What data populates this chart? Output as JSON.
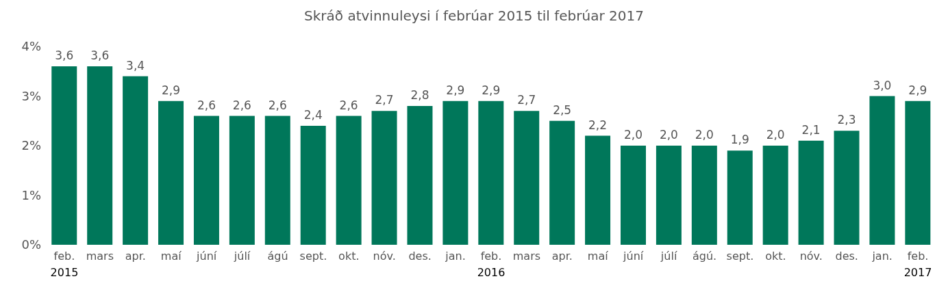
{
  "chart_data": {
    "type": "bar",
    "title": "Skráð atvinnuleysi í febrúar 2015 til febrúar 2017",
    "categories": [
      "feb. 2015",
      "mars",
      "apr.",
      "maí",
      "júní",
      "júlí",
      "ágú",
      "sept.",
      "okt.",
      "nóv.",
      "des.",
      "jan.",
      "feb. 2016",
      "mars",
      "apr.",
      "maí",
      "júní",
      "júlí",
      "ágú.",
      "sept.",
      "okt.",
      "nóv.",
      "des.",
      "jan.",
      "feb. 2017"
    ],
    "values": [
      3.6,
      3.6,
      3.4,
      2.9,
      2.6,
      2.6,
      2.6,
      2.4,
      2.6,
      2.7,
      2.8,
      2.9,
      2.9,
      2.7,
      2.5,
      2.2,
      2.0,
      2.0,
      2.0,
      1.9,
      2.0,
      2.1,
      2.3,
      3.0,
      2.9
    ],
    "value_labels": [
      "3,6",
      "3,6",
      "3,4",
      "2,9",
      "2,6",
      "2,6",
      "2,6",
      "2,4",
      "2,6",
      "2,7",
      "2,8",
      "2,9",
      "2,9",
      "2,7",
      "2,5",
      "2,2",
      "2,0",
      "2,0",
      "2,0",
      "1,9",
      "2,0",
      "2,1",
      "2,3",
      "3,0",
      "2,9"
    ],
    "color": "#00775a",
    "ylim": [
      0,
      4
    ],
    "yticks": [
      {
        "value": 0,
        "label": "0%"
      },
      {
        "value": 1,
        "label": "1%"
      },
      {
        "value": 2,
        "label": "2%"
      },
      {
        "value": 3,
        "label": "3%"
      },
      {
        "value": 4,
        "label": "4%"
      }
    ],
    "grid": false
  }
}
